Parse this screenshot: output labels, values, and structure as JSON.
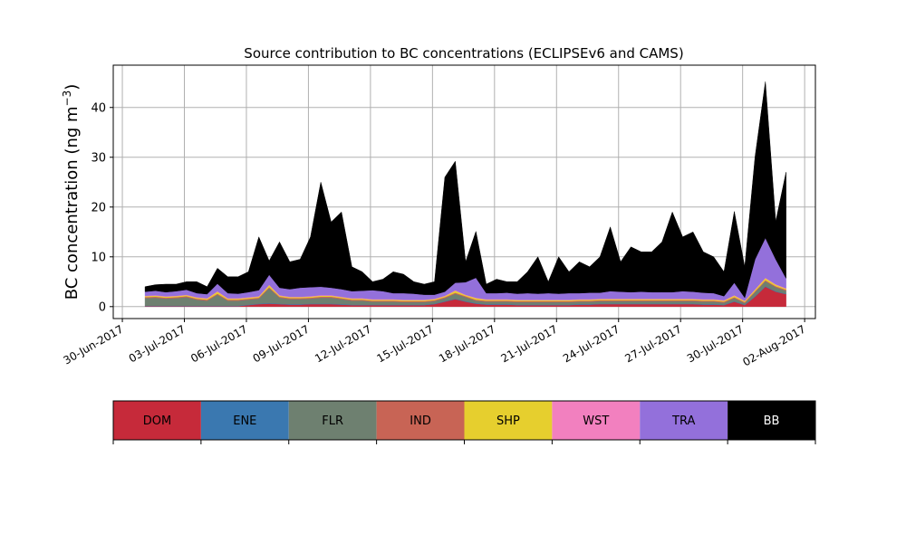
{
  "chart_data": {
    "type": "area",
    "stacked": true,
    "title": "Source contribution to BC concentrations (ECLIPSEv6 and CAMS)",
    "xlabel": "",
    "ylabel": "BC concentration (ng m⁻³)",
    "ylabel_main": "BC concentration (ng m",
    "ylabel_sup": "−3",
    "ylabel_close": ")",
    "x_units": "days since 30-Jun-2017",
    "x_start": 1.1,
    "x_step": 0.5,
    "xlim": [
      -0.44,
      33.52
    ],
    "ylim": [
      -2.4,
      48.5
    ],
    "grid": true,
    "xticks": [
      {
        "value": 0,
        "label": "30-Jun-2017"
      },
      {
        "value": 3,
        "label": "03-Jul-2017"
      },
      {
        "value": 6,
        "label": "06-Jul-2017"
      },
      {
        "value": 9,
        "label": "09-Jul-2017"
      },
      {
        "value": 12,
        "label": "12-Jul-2017"
      },
      {
        "value": 15,
        "label": "15-Jul-2017"
      },
      {
        "value": 18,
        "label": "18-Jul-2017"
      },
      {
        "value": 21,
        "label": "21-Jul-2017"
      },
      {
        "value": 24,
        "label": "24-Jul-2017"
      },
      {
        "value": 27,
        "label": "27-Jul-2017"
      },
      {
        "value": 30,
        "label": "30-Jul-2017"
      },
      {
        "value": 33,
        "label": "02-Aug-2017"
      }
    ],
    "yticks": [
      {
        "value": 0,
        "label": "0"
      },
      {
        "value": 10,
        "label": "10"
      },
      {
        "value": 20,
        "label": "20"
      },
      {
        "value": 30,
        "label": "30"
      },
      {
        "value": 40,
        "label": "40"
      }
    ],
    "legend_placement": "bottom colorbar",
    "series": [
      {
        "name": "DOM",
        "color": "#c62a3a",
        "text_color": "#000000",
        "values": [
          0.1,
          0.1,
          0.1,
          0.1,
          0.1,
          0.1,
          0.1,
          0.1,
          0.1,
          0.1,
          0.3,
          0.5,
          0.6,
          0.5,
          0.4,
          0.4,
          0.5,
          0.5,
          0.5,
          0.4,
          0.3,
          0.3,
          0.3,
          0.3,
          0.3,
          0.3,
          0.3,
          0.3,
          0.5,
          1.0,
          1.5,
          1.0,
          0.6,
          0.4,
          0.4,
          0.4,
          0.3,
          0.3,
          0.3,
          0.3,
          0.3,
          0.3,
          0.4,
          0.4,
          0.5,
          0.5,
          0.5,
          0.5,
          0.5,
          0.5,
          0.5,
          0.5,
          0.5,
          0.5,
          0.4,
          0.4,
          0.3,
          1.0,
          0.3,
          2.0,
          4.0,
          3.0,
          2.5
        ]
      },
      {
        "name": "ENE",
        "color": "#3a78b0",
        "text_color": "#000000",
        "values": [
          0.1,
          0.1,
          0.1,
          0.1,
          0.1,
          0.1,
          0.1,
          0.1,
          0.1,
          0.1,
          0.1,
          0.1,
          0.1,
          0.1,
          0.1,
          0.1,
          0.1,
          0.1,
          0.1,
          0.1,
          0.1,
          0.1,
          0.1,
          0.1,
          0.1,
          0.1,
          0.1,
          0.1,
          0.1,
          0.1,
          0.1,
          0.1,
          0.1,
          0.1,
          0.1,
          0.1,
          0.1,
          0.1,
          0.1,
          0.1,
          0.1,
          0.1,
          0.1,
          0.1,
          0.1,
          0.1,
          0.1,
          0.1,
          0.1,
          0.1,
          0.1,
          0.1,
          0.1,
          0.1,
          0.1,
          0.1,
          0.1,
          0.1,
          0.1,
          0.1,
          0.1,
          0.1,
          0.1
        ]
      },
      {
        "name": "FLR",
        "color": "#6e8070",
        "text_color": "#000000",
        "values": [
          1.5,
          1.6,
          1.4,
          1.5,
          1.7,
          1.2,
          1.0,
          2.2,
          1.0,
          1.0,
          1.0,
          1.0,
          3.0,
          1.2,
          1.0,
          1.0,
          1.0,
          1.2,
          1.2,
          1.0,
          0.8,
          0.8,
          0.6,
          0.6,
          0.6,
          0.5,
          0.5,
          0.5,
          0.5,
          0.6,
          1.0,
          0.8,
          0.5,
          0.5,
          0.5,
          0.5,
          0.5,
          0.5,
          0.5,
          0.5,
          0.5,
          0.5,
          0.5,
          0.5,
          0.5,
          0.5,
          0.5,
          0.5,
          0.5,
          0.5,
          0.5,
          0.5,
          0.5,
          0.5,
          0.5,
          0.5,
          0.4,
          0.6,
          0.3,
          0.8,
          1.0,
          0.8,
          0.6
        ]
      },
      {
        "name": "IND",
        "color": "#c86455",
        "text_color": "#000000",
        "values": [
          0.2,
          0.2,
          0.2,
          0.2,
          0.2,
          0.2,
          0.2,
          0.2,
          0.2,
          0.2,
          0.2,
          0.2,
          0.2,
          0.2,
          0.2,
          0.2,
          0.2,
          0.2,
          0.2,
          0.2,
          0.2,
          0.2,
          0.2,
          0.2,
          0.2,
          0.2,
          0.2,
          0.2,
          0.2,
          0.2,
          0.2,
          0.2,
          0.2,
          0.2,
          0.2,
          0.2,
          0.2,
          0.2,
          0.2,
          0.2,
          0.2,
          0.2,
          0.2,
          0.2,
          0.2,
          0.2,
          0.2,
          0.2,
          0.2,
          0.2,
          0.2,
          0.2,
          0.2,
          0.2,
          0.2,
          0.2,
          0.2,
          0.2,
          0.2,
          0.2,
          0.2,
          0.2,
          0.2
        ]
      },
      {
        "name": "SHP",
        "color": "#e6cf2e",
        "text_color": "#000000",
        "values": [
          0.2,
          0.2,
          0.2,
          0.2,
          0.2,
          0.2,
          0.2,
          0.4,
          0.2,
          0.2,
          0.2,
          0.2,
          0.4,
          0.2,
          0.2,
          0.2,
          0.2,
          0.2,
          0.2,
          0.2,
          0.2,
          0.2,
          0.2,
          0.2,
          0.2,
          0.2,
          0.2,
          0.2,
          0.2,
          0.2,
          0.4,
          0.2,
          0.3,
          0.2,
          0.2,
          0.2,
          0.2,
          0.2,
          0.2,
          0.2,
          0.2,
          0.2,
          0.2,
          0.2,
          0.2,
          0.2,
          0.2,
          0.2,
          0.2,
          0.2,
          0.2,
          0.2,
          0.2,
          0.2,
          0.2,
          0.2,
          0.2,
          0.3,
          0.2,
          0.3,
          0.4,
          0.3,
          0.2
        ]
      },
      {
        "name": "WST",
        "color": "#f280bf",
        "text_color": "#000000",
        "values": [
          0.1,
          0.1,
          0.1,
          0.1,
          0.1,
          0.1,
          0.1,
          0.1,
          0.1,
          0.1,
          0.1,
          0.1,
          0.1,
          0.1,
          0.1,
          0.1,
          0.1,
          0.1,
          0.1,
          0.1,
          0.1,
          0.1,
          0.1,
          0.1,
          0.1,
          0.1,
          0.1,
          0.1,
          0.1,
          0.1,
          0.1,
          0.1,
          0.1,
          0.1,
          0.1,
          0.1,
          0.1,
          0.1,
          0.1,
          0.1,
          0.1,
          0.1,
          0.1,
          0.1,
          0.1,
          0.1,
          0.1,
          0.1,
          0.1,
          0.1,
          0.1,
          0.1,
          0.1,
          0.1,
          0.1,
          0.1,
          0.1,
          0.1,
          0.1,
          0.1,
          0.1,
          0.1,
          0.1
        ]
      },
      {
        "name": "TRA",
        "color": "#9370db",
        "text_color": "#000000",
        "values": [
          0.8,
          0.9,
          0.8,
          0.9,
          1.0,
          0.8,
          0.8,
          1.5,
          1.0,
          0.9,
          1.0,
          1.2,
          2.0,
          1.5,
          1.5,
          1.8,
          1.8,
          1.7,
          1.5,
          1.5,
          1.4,
          1.5,
          1.8,
          1.6,
          1.2,
          1.3,
          1.2,
          1.0,
          0.8,
          0.8,
          1.5,
          2.5,
          4.0,
          1.2,
          1.2,
          1.3,
          1.2,
          1.3,
          1.2,
          1.3,
          1.2,
          1.3,
          1.2,
          1.3,
          1.2,
          1.5,
          1.4,
          1.3,
          1.4,
          1.3,
          1.3,
          1.3,
          1.5,
          1.4,
          1.3,
          1.2,
          0.8,
          2.5,
          0.6,
          6.0,
          8.0,
          5.0,
          2.0
        ]
      },
      {
        "name": "BB",
        "color": "#000000",
        "text_color": "#ffffff",
        "values": [
          1.0,
          1.2,
          1.6,
          1.4,
          1.6,
          2.3,
          1.5,
          3.1,
          3.3,
          3.4,
          4.1,
          10.7,
          2.8,
          9.2,
          5.5,
          5.7,
          10.1,
          21.0,
          13.2,
          15.5,
          4.9,
          3.8,
          1.7,
          2.4,
          4.3,
          3.8,
          2.4,
          2.1,
          2.6,
          23.0,
          24.4,
          4.1,
          9.3,
          1.8,
          2.8,
          2.2,
          2.4,
          4.3,
          7.4,
          2.3,
          7.4,
          4.3,
          6.3,
          5.2,
          7.2,
          12.9,
          6.0,
          9.1,
          8.0,
          8.1,
          10.1,
          16.1,
          10.9,
          12.0,
          8.2,
          7.3,
          4.9,
          14.3,
          6.2,
          20.6,
          31.4,
          7.6,
          21.3
        ]
      }
    ]
  }
}
